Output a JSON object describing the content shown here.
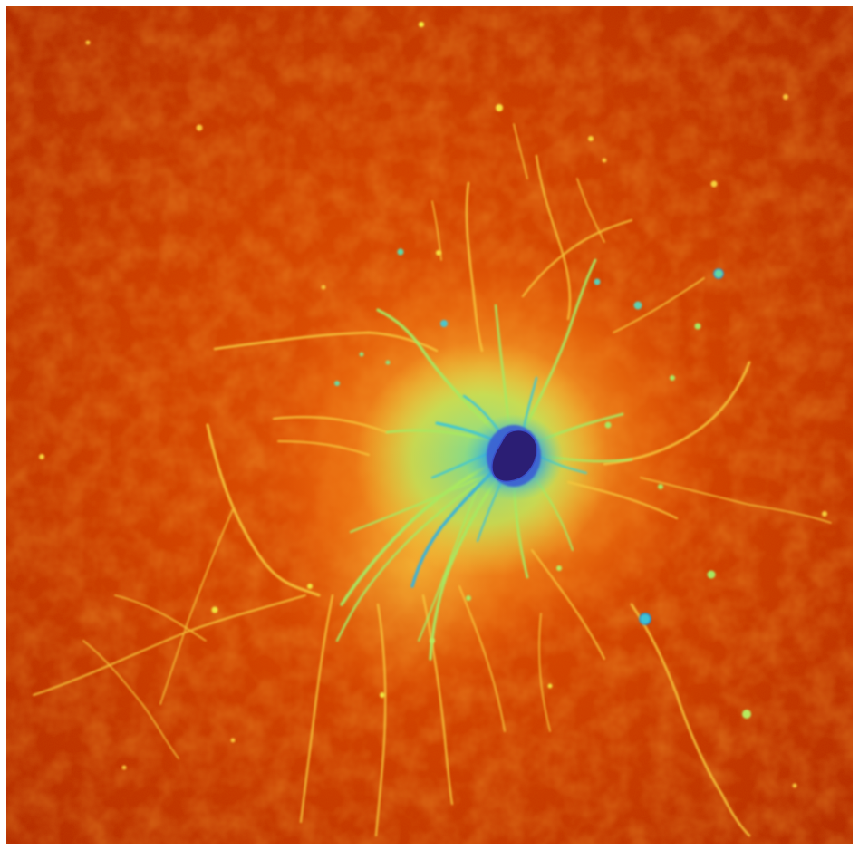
{
  "image": {
    "subject": "neuron-fluorescence-micrograph",
    "colormap": "jet",
    "colors": {
      "background_dark": "#b82a00",
      "background_mid": "#d64100",
      "halo_orange": "#f07a12",
      "halo_yellow": "#f6c23a",
      "process_yellow": "#f4e33e",
      "process_green": "#9ce66a",
      "inner_cyan": "#38c6d8",
      "inner_blue": "#2f62d6",
      "soma_core": "#2c1f78"
    }
  }
}
